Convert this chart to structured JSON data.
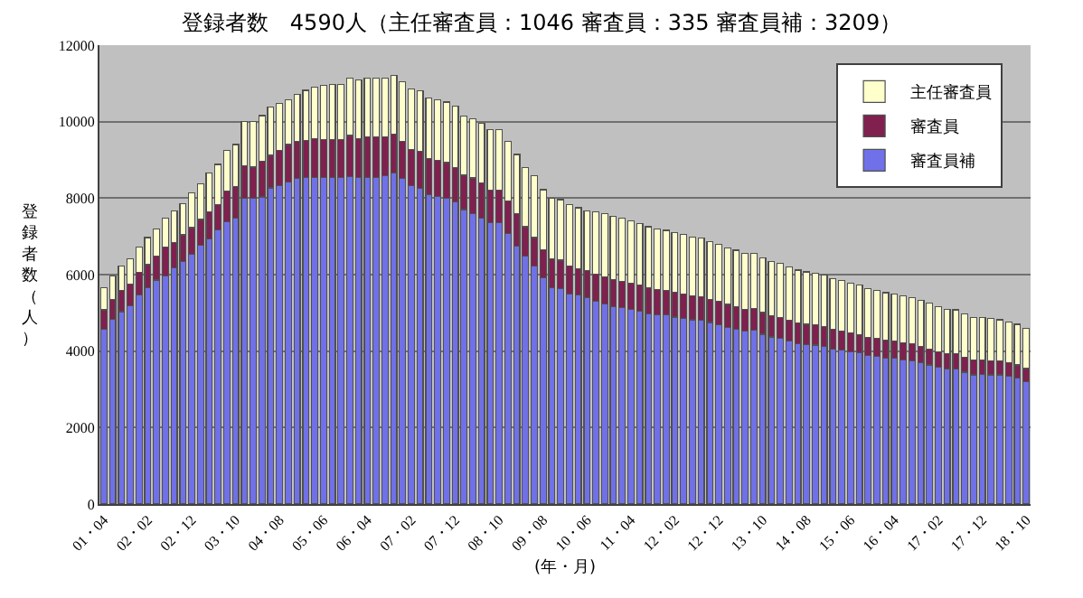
{
  "chart_data": {
    "type": "bar",
    "stacked": true,
    "title": "登録者数　4590人（主任審査員：1046 審査員：335 審査員補：3209）",
    "xlabel": "(年・月)",
    "ylabel": "登録者数（人）",
    "categories": [
      "01・04",
      null,
      null,
      null,
      null,
      "02・02",
      null,
      null,
      null,
      null,
      "02・12",
      null,
      null,
      null,
      null,
      "03・10",
      null,
      null,
      null,
      null,
      "04・08",
      null,
      null,
      null,
      null,
      "05・06",
      null,
      null,
      null,
      null,
      "06・04",
      null,
      null,
      null,
      null,
      "07・02",
      null,
      null,
      null,
      null,
      "07・12",
      null,
      null,
      null,
      null,
      "08・10",
      null,
      null,
      null,
      null,
      "09・08",
      null,
      null,
      null,
      null,
      "10・06",
      null,
      null,
      null,
      null,
      "11・04",
      null,
      null,
      null,
      null,
      "12・02",
      null,
      null,
      null,
      null,
      "12・12",
      null,
      null,
      null,
      null,
      "13・10",
      null,
      null,
      null,
      null,
      "14・08",
      null,
      null,
      null,
      null,
      "15・06",
      null,
      null,
      null,
      null,
      "16・04",
      null,
      null,
      null,
      null,
      "17・02",
      null,
      null,
      null,
      null,
      "17・12",
      null,
      null,
      null,
      null,
      "18・10"
    ],
    "series": [
      {
        "name": "審査員補",
        "color": "#7070e8",
        "values": [
          4580,
          4840,
          5030,
          5190,
          5470,
          5660,
          5860,
          5970,
          6180,
          6340,
          6530,
          6760,
          6930,
          7170,
          7390,
          7480,
          7990,
          7990,
          8030,
          8270,
          8330,
          8430,
          8510,
          8540,
          8540,
          8540,
          8540,
          8540,
          8570,
          8540,
          8540,
          8540,
          8580,
          8660,
          8510,
          8330,
          8250,
          8100,
          8050,
          8000,
          7900,
          7700,
          7600,
          7480,
          7350,
          7350,
          7080,
          6750,
          6480,
          6230,
          5910,
          5660,
          5630,
          5500,
          5470,
          5390,
          5310,
          5240,
          5170,
          5140,
          5100,
          5040,
          4980,
          4950,
          4940,
          4890,
          4860,
          4820,
          4810,
          4750,
          4690,
          4620,
          4580,
          4520,
          4540,
          4440,
          4370,
          4330,
          4270,
          4200,
          4170,
          4160,
          4130,
          4060,
          4030,
          3990,
          3950,
          3890,
          3860,
          3820,
          3810,
          3770,
          3750,
          3700,
          3640,
          3580,
          3540,
          3530,
          3450,
          3380,
          3390,
          3380,
          3380,
          3340,
          3300,
          3209
        ]
      },
      {
        "name": "審査員",
        "color": "#80204f",
        "values": [
          500,
          520,
          550,
          560,
          580,
          600,
          630,
          760,
          660,
          700,
          700,
          680,
          710,
          660,
          790,
          820,
          860,
          820,
          930,
          850,
          920,
          970,
          970,
          970,
          1020,
          990,
          990,
          990,
          1070,
          1020,
          1070,
          1070,
          1030,
          1010,
          970,
          950,
          970,
          930,
          940,
          930,
          900,
          900,
          930,
          910,
          850,
          850,
          850,
          850,
          770,
          740,
          740,
          760,
          750,
          730,
          680,
          710,
          710,
          700,
          700,
          690,
          680,
          680,
          670,
          660,
          650,
          650,
          640,
          630,
          620,
          610,
          610,
          600,
          590,
          580,
          580,
          570,
          560,
          550,
          540,
          540,
          530,
          520,
          510,
          510,
          500,
          490,
          480,
          470,
          470,
          460,
          450,
          440,
          440,
          430,
          420,
          410,
          400,
          400,
          390,
          380,
          370,
          370,
          360,
          350,
          340,
          335
        ]
      },
      {
        "name": "主任審査員",
        "color": "#ffffcc",
        "values": [
          580,
          610,
          650,
          670,
          680,
          710,
          710,
          740,
          830,
          820,
          910,
          940,
          1010,
          1050,
          1070,
          1100,
          1150,
          1190,
          1200,
          1260,
          1220,
          1180,
          1230,
          1310,
          1340,
          1410,
          1440,
          1440,
          1490,
          1540,
          1520,
          1520,
          1520,
          1540,
          1570,
          1570,
          1580,
          1590,
          1590,
          1580,
          1600,
          1550,
          1550,
          1560,
          1600,
          1600,
          1550,
          1540,
          1550,
          1610,
          1570,
          1570,
          1580,
          1600,
          1600,
          1570,
          1620,
          1650,
          1650,
          1640,
          1620,
          1610,
          1600,
          1590,
          1570,
          1560,
          1550,
          1530,
          1520,
          1510,
          1500,
          1480,
          1470,
          1460,
          1440,
          1430,
          1420,
          1410,
          1390,
          1380,
          1370,
          1350,
          1340,
          1330,
          1320,
          1300,
          1290,
          1280,
          1260,
          1250,
          1240,
          1230,
          1210,
          1200,
          1190,
          1170,
          1160,
          1150,
          1140,
          1120,
          1110,
          1100,
          1080,
          1070,
          1060,
          1046
        ]
      }
    ],
    "ylim": [
      0,
      12000
    ],
    "yticks": [
      0,
      2000,
      4000,
      6000,
      8000,
      10000,
      12000
    ],
    "grid": "y",
    "legend": "top right"
  }
}
